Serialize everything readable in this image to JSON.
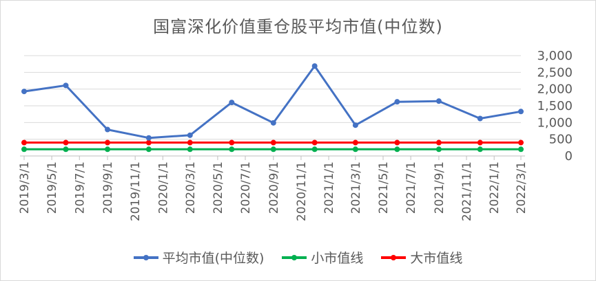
{
  "chart_data": {
    "type": "line",
    "title": "国富深化价值重仓股平均市值(中位数)",
    "xlabel": "",
    "ylabel": "",
    "ylim": [
      0,
      3000
    ],
    "yticks": [
      "0",
      "500",
      "1,000",
      "1,500",
      "2,000",
      "2,500",
      "3,000"
    ],
    "x_tick_labels": [
      "2019/3/1",
      "2019/5/1",
      "2019/7/1",
      "2019/9/1",
      "2019/11/1",
      "2020/1/1",
      "2020/3/1",
      "2020/5/1",
      "2020/7/1",
      "2020/9/1",
      "2020/11/1",
      "2021/1/1",
      "2021/3/1",
      "2021/5/1",
      "2021/7/1",
      "2021/9/1",
      "2021/11/1",
      "2022/1/1",
      "2022/3/1"
    ],
    "grid": "horizontal",
    "legend_position": "bottom",
    "series": [
      {
        "name": "平均市值(中位数)",
        "color": "#4472c4",
        "x": [
          "2019/3/1",
          "2019/6/1",
          "2019/9/1",
          "2019/12/1",
          "2020/3/1",
          "2020/6/1",
          "2020/9/1",
          "2020/12/1",
          "2021/3/1",
          "2021/6/1",
          "2021/9/1",
          "2021/12/1",
          "2022/3/1"
        ],
        "values": [
          1930,
          2110,
          790,
          540,
          620,
          1600,
          990,
          2690,
          920,
          1620,
          1640,
          1120,
          1330
        ]
      },
      {
        "name": "小市值线",
        "color": "#00b050",
        "x": [
          "2019/3/1",
          "2019/6/1",
          "2019/9/1",
          "2019/12/1",
          "2020/3/1",
          "2020/6/1",
          "2020/9/1",
          "2020/12/1",
          "2021/3/1",
          "2021/6/1",
          "2021/9/1",
          "2021/12/1",
          "2022/3/1"
        ],
        "values": [
          200,
          200,
          200,
          200,
          200,
          200,
          200,
          200,
          200,
          200,
          200,
          200,
          200
        ]
      },
      {
        "name": "大市值线",
        "color": "#ff0000",
        "x": [
          "2019/3/1",
          "2019/6/1",
          "2019/9/1",
          "2019/12/1",
          "2020/3/1",
          "2020/6/1",
          "2020/9/1",
          "2020/12/1",
          "2021/3/1",
          "2021/6/1",
          "2021/9/1",
          "2021/12/1",
          "2022/3/1"
        ],
        "values": [
          400,
          400,
          400,
          400,
          400,
          400,
          400,
          400,
          400,
          400,
          400,
          400,
          400
        ]
      }
    ]
  }
}
